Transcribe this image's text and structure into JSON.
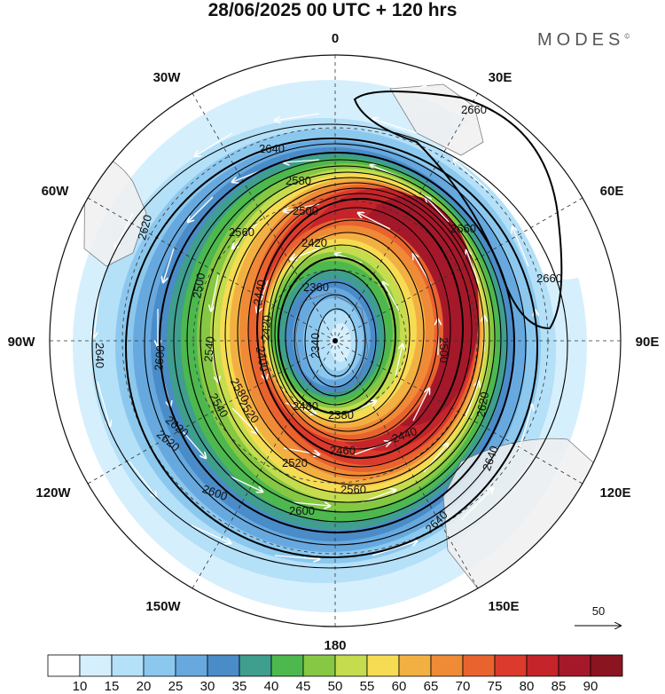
{
  "title": "28/06/2025  00 UTC  + 120 hrs",
  "brand": "MODES",
  "brand_mark": "©",
  "longitude_labels": {
    "top": "0",
    "top_right": "30E",
    "right_upper": "60E",
    "right": "90E",
    "right_lower": "120E",
    "bottom_right": "150E",
    "bottom": "180",
    "bottom_left": "150W",
    "left_lower": "120W",
    "left": "90W",
    "left_upper": "60W",
    "top_left": "30W"
  },
  "wind_reference": "50",
  "colorbar": {
    "labels": [
      "10",
      "15",
      "20",
      "25",
      "30",
      "35",
      "40",
      "45",
      "50",
      "55",
      "60",
      "65",
      "70",
      "75",
      "80",
      "85",
      "90"
    ],
    "colors": [
      "#ffffff",
      "#d6effc",
      "#b4e0f8",
      "#8cc8ee",
      "#67a9df",
      "#4a8cc8",
      "#3f9e8e",
      "#4db84e",
      "#86c843",
      "#c4dc4e",
      "#f5dc52",
      "#f3b042",
      "#ef8a36",
      "#e9632f",
      "#db3a2c",
      "#c4242a",
      "#a5182a",
      "#8a1420"
    ]
  },
  "contour_labels": [
    "2640",
    "2660",
    "2660",
    "2660",
    "2580",
    "2500",
    "2420",
    "2360",
    "2340",
    "2620",
    "2560",
    "2500",
    "2440",
    "2420",
    "2540",
    "2640",
    "2600",
    "2540",
    "2580",
    "2620",
    "2520",
    "2480",
    "2400",
    "2380",
    "2460",
    "2440",
    "2500",
    "2520",
    "2560",
    "2600",
    "2620",
    "2640",
    "2640",
    "2620",
    "2600"
  ],
  "map_colors": {
    "land": "#f0f0f0",
    "coast": "#6a6a6a",
    "contour": "#000000",
    "wind_arrow": "#ffffff",
    "graticule": "#333333"
  }
}
